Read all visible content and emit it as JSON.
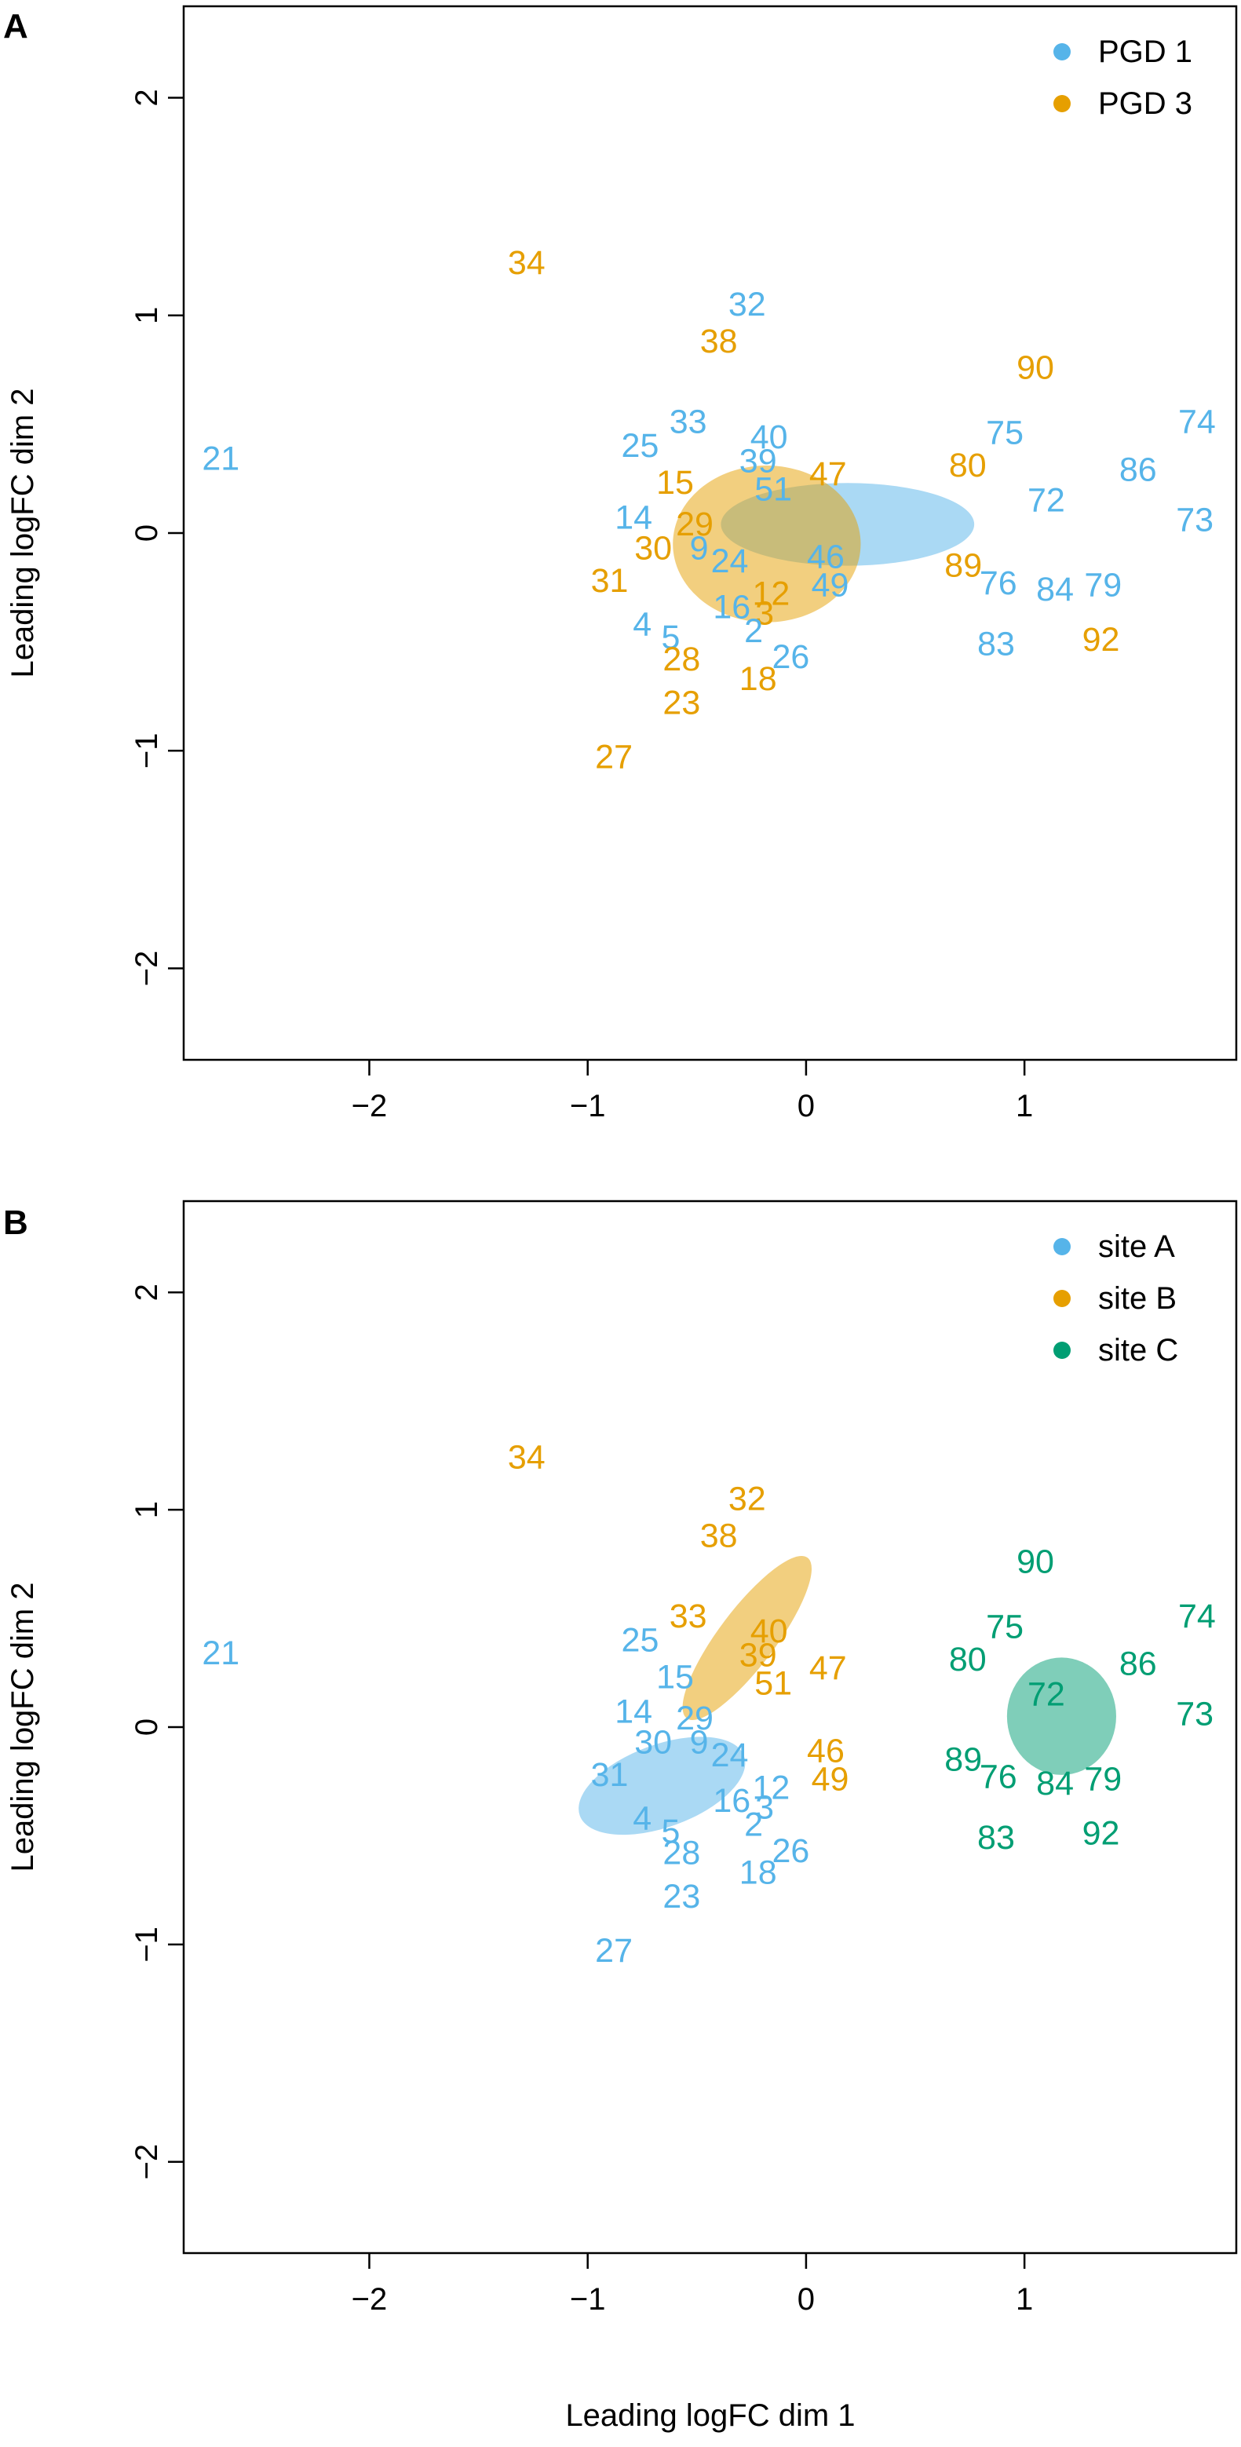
{
  "figure": {
    "shared_xlabel": "Leading logFC dim 1"
  },
  "colors": {
    "blue": "#56B4E9",
    "orange": "#E69F00",
    "green": "#009E73",
    "axis": "#000000"
  },
  "chart_data": [
    {
      "type": "scatter",
      "panel_label": "A",
      "xlabel": "",
      "ylabel": "Leading logFC dim 2",
      "xlim": [
        -2.85,
        1.97
      ],
      "ylim": [
        -2.42,
        2.42
      ],
      "xticks": [
        -2,
        -1,
        0,
        1
      ],
      "xtick_labels": [
        "−2",
        "−1",
        "0",
        "1"
      ],
      "yticks": [
        -2,
        -1,
        0,
        1,
        2
      ],
      "ytick_labels": [
        "−2",
        "−1",
        "0",
        "1",
        "2"
      ],
      "legend": [
        {
          "label": "PGD 1",
          "color": "blue"
        },
        {
          "label": "PGD 3",
          "color": "orange"
        }
      ],
      "ellipses": [
        {
          "group": "PGD 1",
          "color": "blue",
          "cx": 0.19,
          "cy": 0.04,
          "rx": 0.58,
          "ry": 0.19,
          "angle": 0
        },
        {
          "group": "PGD 3",
          "color": "orange",
          "cx": -0.18,
          "cy": -0.05,
          "rx": 0.43,
          "ry": 0.36,
          "angle": 0
        }
      ],
      "points": [
        {
          "label": "21",
          "x": -2.68,
          "y": 0.34,
          "color": "blue"
        },
        {
          "label": "34",
          "x": -1.28,
          "y": 1.24,
          "color": "orange"
        },
        {
          "label": "32",
          "x": -0.27,
          "y": 1.05,
          "color": "blue"
        },
        {
          "label": "38",
          "x": -0.4,
          "y": 0.88,
          "color": "orange"
        },
        {
          "label": "90",
          "x": 1.05,
          "y": 0.76,
          "color": "orange"
        },
        {
          "label": "33",
          "x": -0.54,
          "y": 0.51,
          "color": "blue"
        },
        {
          "label": "74",
          "x": 1.79,
          "y": 0.51,
          "color": "blue"
        },
        {
          "label": "25",
          "x": -0.76,
          "y": 0.4,
          "color": "blue"
        },
        {
          "label": "40",
          "x": -0.17,
          "y": 0.44,
          "color": "blue"
        },
        {
          "label": "75",
          "x": 0.91,
          "y": 0.46,
          "color": "blue"
        },
        {
          "label": "39",
          "x": -0.22,
          "y": 0.33,
          "color": "blue"
        },
        {
          "label": "80",
          "x": 0.74,
          "y": 0.31,
          "color": "orange"
        },
        {
          "label": "86",
          "x": 1.52,
          "y": 0.29,
          "color": "blue"
        },
        {
          "label": "15",
          "x": -0.6,
          "y": 0.23,
          "color": "orange"
        },
        {
          "label": "47",
          "x": 0.1,
          "y": 0.27,
          "color": "orange"
        },
        {
          "label": "51",
          "x": -0.15,
          "y": 0.2,
          "color": "blue"
        },
        {
          "label": "72",
          "x": 1.1,
          "y": 0.15,
          "color": "blue"
        },
        {
          "label": "14",
          "x": -0.79,
          "y": 0.07,
          "color": "blue"
        },
        {
          "label": "29",
          "x": -0.51,
          "y": 0.04,
          "color": "orange"
        },
        {
          "label": "73",
          "x": 1.78,
          "y": 0.06,
          "color": "blue"
        },
        {
          "label": "30",
          "x": -0.7,
          "y": -0.07,
          "color": "orange"
        },
        {
          "label": "9",
          "x": -0.49,
          "y": -0.07,
          "color": "blue"
        },
        {
          "label": "24",
          "x": -0.35,
          "y": -0.13,
          "color": "blue"
        },
        {
          "label": "46",
          "x": 0.09,
          "y": -0.11,
          "color": "blue"
        },
        {
          "label": "89",
          "x": 0.72,
          "y": -0.15,
          "color": "orange"
        },
        {
          "label": "31",
          "x": -0.9,
          "y": -0.22,
          "color": "orange"
        },
        {
          "label": "49",
          "x": 0.11,
          "y": -0.24,
          "color": "blue"
        },
        {
          "label": "76",
          "x": 0.88,
          "y": -0.23,
          "color": "blue"
        },
        {
          "label": "84",
          "x": 1.14,
          "y": -0.26,
          "color": "blue"
        },
        {
          "label": "79",
          "x": 1.36,
          "y": -0.24,
          "color": "blue"
        },
        {
          "label": "12",
          "x": -0.16,
          "y": -0.28,
          "color": "orange"
        },
        {
          "label": "16",
          "x": -0.34,
          "y": -0.34,
          "color": "blue"
        },
        {
          "label": "3",
          "x": -0.19,
          "y": -0.37,
          "color": "orange"
        },
        {
          "label": "4",
          "x": -0.75,
          "y": -0.42,
          "color": "blue"
        },
        {
          "label": "2",
          "x": -0.24,
          "y": -0.45,
          "color": "blue"
        },
        {
          "label": "5",
          "x": -0.62,
          "y": -0.48,
          "color": "blue"
        },
        {
          "label": "83",
          "x": 0.87,
          "y": -0.51,
          "color": "blue"
        },
        {
          "label": "92",
          "x": 1.35,
          "y": -0.49,
          "color": "orange"
        },
        {
          "label": "28",
          "x": -0.57,
          "y": -0.58,
          "color": "orange"
        },
        {
          "label": "26",
          "x": -0.07,
          "y": -0.57,
          "color": "blue"
        },
        {
          "label": "18",
          "x": -0.22,
          "y": -0.67,
          "color": "orange"
        },
        {
          "label": "23",
          "x": -0.57,
          "y": -0.78,
          "color": "orange"
        },
        {
          "label": "27",
          "x": -0.88,
          "y": -1.03,
          "color": "orange"
        }
      ]
    },
    {
      "type": "scatter",
      "panel_label": "B",
      "xlabel": "",
      "ylabel": "Leading logFC dim 2",
      "xlim": [
        -2.85,
        1.97
      ],
      "ylim": [
        -2.42,
        2.42
      ],
      "xticks": [
        -2,
        -1,
        0,
        1
      ],
      "xtick_labels": [
        "−2",
        "−1",
        "0",
        "1"
      ],
      "yticks": [
        -2,
        -1,
        0,
        1,
        2
      ],
      "ytick_labels": [
        "−2",
        "−1",
        "0",
        "1",
        "2"
      ],
      "legend": [
        {
          "label": "site A",
          "color": "blue"
        },
        {
          "label": "site B",
          "color": "orange"
        },
        {
          "label": "site C",
          "color": "green"
        }
      ],
      "ellipses": [
        {
          "group": "site A",
          "color": "blue",
          "cx": -0.66,
          "cy": -0.27,
          "rx": 0.4,
          "ry": 0.19,
          "angle": 20
        },
        {
          "group": "site B",
          "color": "orange",
          "cx": -0.27,
          "cy": 0.41,
          "rx": 0.46,
          "ry": 0.13,
          "angle": 53
        },
        {
          "group": "site C",
          "color": "green",
          "cx": 1.17,
          "cy": 0.05,
          "rx": 0.25,
          "ry": 0.27,
          "angle": 0
        }
      ],
      "points": [
        {
          "label": "21",
          "x": -2.68,
          "y": 0.34,
          "color": "blue"
        },
        {
          "label": "34",
          "x": -1.28,
          "y": 1.24,
          "color": "orange"
        },
        {
          "label": "32",
          "x": -0.27,
          "y": 1.05,
          "color": "orange"
        },
        {
          "label": "38",
          "x": -0.4,
          "y": 0.88,
          "color": "orange"
        },
        {
          "label": "90",
          "x": 1.05,
          "y": 0.76,
          "color": "green"
        },
        {
          "label": "33",
          "x": -0.54,
          "y": 0.51,
          "color": "orange"
        },
        {
          "label": "74",
          "x": 1.79,
          "y": 0.51,
          "color": "green"
        },
        {
          "label": "25",
          "x": -0.76,
          "y": 0.4,
          "color": "blue"
        },
        {
          "label": "40",
          "x": -0.17,
          "y": 0.44,
          "color": "orange"
        },
        {
          "label": "75",
          "x": 0.91,
          "y": 0.46,
          "color": "green"
        },
        {
          "label": "39",
          "x": -0.22,
          "y": 0.33,
          "color": "orange"
        },
        {
          "label": "80",
          "x": 0.74,
          "y": 0.31,
          "color": "green"
        },
        {
          "label": "86",
          "x": 1.52,
          "y": 0.29,
          "color": "green"
        },
        {
          "label": "15",
          "x": -0.6,
          "y": 0.23,
          "color": "blue"
        },
        {
          "label": "47",
          "x": 0.1,
          "y": 0.27,
          "color": "orange"
        },
        {
          "label": "51",
          "x": -0.15,
          "y": 0.2,
          "color": "orange"
        },
        {
          "label": "72",
          "x": 1.1,
          "y": 0.15,
          "color": "green"
        },
        {
          "label": "14",
          "x": -0.79,
          "y": 0.07,
          "color": "blue"
        },
        {
          "label": "29",
          "x": -0.51,
          "y": 0.04,
          "color": "blue"
        },
        {
          "label": "73",
          "x": 1.78,
          "y": 0.06,
          "color": "green"
        },
        {
          "label": "30",
          "x": -0.7,
          "y": -0.07,
          "color": "blue"
        },
        {
          "label": "9",
          "x": -0.49,
          "y": -0.07,
          "color": "blue"
        },
        {
          "label": "24",
          "x": -0.35,
          "y": -0.13,
          "color": "blue"
        },
        {
          "label": "46",
          "x": 0.09,
          "y": -0.11,
          "color": "orange"
        },
        {
          "label": "89",
          "x": 0.72,
          "y": -0.15,
          "color": "green"
        },
        {
          "label": "31",
          "x": -0.9,
          "y": -0.22,
          "color": "blue"
        },
        {
          "label": "49",
          "x": 0.11,
          "y": -0.24,
          "color": "orange"
        },
        {
          "label": "76",
          "x": 0.88,
          "y": -0.23,
          "color": "green"
        },
        {
          "label": "84",
          "x": 1.14,
          "y": -0.26,
          "color": "green"
        },
        {
          "label": "79",
          "x": 1.36,
          "y": -0.24,
          "color": "green"
        },
        {
          "label": "12",
          "x": -0.16,
          "y": -0.28,
          "color": "blue"
        },
        {
          "label": "16",
          "x": -0.34,
          "y": -0.34,
          "color": "blue"
        },
        {
          "label": "3",
          "x": -0.19,
          "y": -0.37,
          "color": "blue"
        },
        {
          "label": "4",
          "x": -0.75,
          "y": -0.42,
          "color": "blue"
        },
        {
          "label": "2",
          "x": -0.24,
          "y": -0.45,
          "color": "blue"
        },
        {
          "label": "5",
          "x": -0.62,
          "y": -0.48,
          "color": "blue"
        },
        {
          "label": "83",
          "x": 0.87,
          "y": -0.51,
          "color": "green"
        },
        {
          "label": "92",
          "x": 1.35,
          "y": -0.49,
          "color": "green"
        },
        {
          "label": "28",
          "x": -0.57,
          "y": -0.58,
          "color": "blue"
        },
        {
          "label": "26",
          "x": -0.07,
          "y": -0.57,
          "color": "blue"
        },
        {
          "label": "18",
          "x": -0.22,
          "y": -0.67,
          "color": "blue"
        },
        {
          "label": "23",
          "x": -0.57,
          "y": -0.78,
          "color": "blue"
        },
        {
          "label": "27",
          "x": -0.88,
          "y": -1.03,
          "color": "blue"
        }
      ]
    }
  ]
}
